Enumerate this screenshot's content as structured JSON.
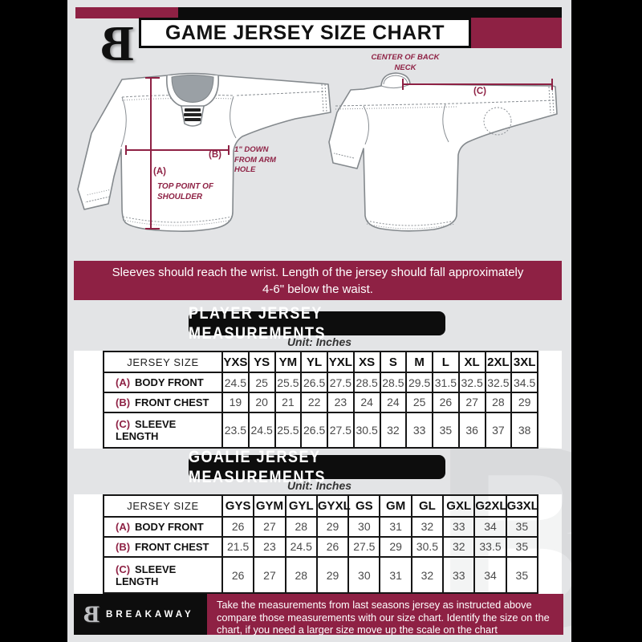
{
  "header": {
    "title": "GAME JERSEY SIZE CHART",
    "logo_glyph": "B"
  },
  "diagram": {
    "label_a": "(A)",
    "label_a_text": "TOP POINT OF SHOULDER",
    "label_b": "(B)",
    "label_b_text": "1\" DOWN FROM ARM HOLE",
    "label_c": "(C)",
    "label_c_text": "CENTER OF BACK NECK"
  },
  "banner": {
    "text": "Sleeves should reach the wrist. Length of the jersey should fall approximately 4-6\" below the waist."
  },
  "player_section": {
    "title": "PLAYER JERSEY MEASUREMENTS",
    "unit": "Unit: Inches",
    "table": {
      "header_label": "JERSEY SIZE",
      "sizes": [
        "YXS",
        "YS",
        "YM",
        "YL",
        "YXL",
        "XS",
        "S",
        "M",
        "L",
        "XL",
        "2XL",
        "3XL"
      ],
      "rows": [
        {
          "key": "(A)",
          "label": "BODY FRONT",
          "values": [
            "24.5",
            "25",
            "25.5",
            "26.5",
            "27.5",
            "28.5",
            "28.5",
            "29.5",
            "31.5",
            "32.5",
            "32.5",
            "34.5"
          ]
        },
        {
          "key": "(B)",
          "label": "FRONT CHEST",
          "values": [
            "19",
            "20",
            "21",
            "22",
            "23",
            "24",
            "24",
            "25",
            "26",
            "27",
            "28",
            "29"
          ]
        },
        {
          "key": "(C)",
          "label": "SLEEVE LENGTH",
          "values": [
            "23.5",
            "24.5",
            "25.5",
            "26.5",
            "27.5",
            "30.5",
            "32",
            "33",
            "35",
            "36",
            "37",
            "38"
          ]
        }
      ]
    }
  },
  "goalie_section": {
    "title": "GOALIE JERSEY MEASUREMENTS",
    "unit": "Unit: Inches",
    "table": {
      "header_label": "JERSEY SIZE",
      "sizes": [
        "GYS",
        "GYM",
        "GYL",
        "GYXL",
        "GS",
        "GM",
        "GL",
        "GXL",
        "G2XL",
        "G3XL"
      ],
      "rows": [
        {
          "key": "(A)",
          "label": "BODY FRONT",
          "values": [
            "26",
            "27",
            "28",
            "29",
            "30",
            "31",
            "32",
            "33",
            "34",
            "35"
          ]
        },
        {
          "key": "(B)",
          "label": "FRONT CHEST",
          "values": [
            "21.5",
            "23",
            "24.5",
            "26",
            "27.5",
            "29",
            "30.5",
            "32",
            "33.5",
            "35"
          ]
        },
        {
          "key": "(C)",
          "label": "SLEEVE LENGTH",
          "values": [
            "26",
            "27",
            "28",
            "29",
            "30",
            "31",
            "32",
            "33",
            "34",
            "35"
          ]
        }
      ]
    }
  },
  "footer": {
    "logo_glyph": "B",
    "brand": "BREAKAWAY",
    "text": "Take the measurements from last seasons jersey as instructed above compare those measurements  with our size chart. Identify the size on the chart, if you need a larger size move up the scale on the chart"
  },
  "watermark": "B",
  "colors": {
    "maroon": "#8e2144",
    "black": "#0c0c0c",
    "background": "#e3e4e6",
    "table_text": "#4a4a4a"
  }
}
